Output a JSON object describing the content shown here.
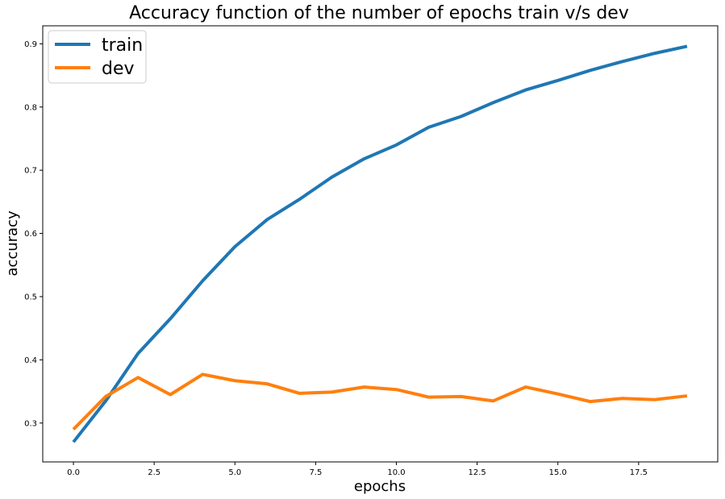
{
  "chart_data": {
    "type": "line",
    "title": "Accuracy function of the number of epochs train v/s dev",
    "xlabel": "epochs",
    "ylabel": "accuracy",
    "xlim": [
      -0.95,
      19.95
    ],
    "ylim": [
      0.2385,
      0.9285
    ],
    "xticks": [
      0.0,
      2.5,
      5.0,
      7.5,
      10.0,
      12.5,
      15.0,
      17.5
    ],
    "xtick_labels": [
      "0.0",
      "2.5",
      "5.0",
      "7.5",
      "10.0",
      "12.5",
      "15.0",
      "17.5"
    ],
    "yticks": [
      0.3,
      0.4,
      0.5,
      0.6,
      0.7,
      0.8,
      0.9
    ],
    "ytick_labels": [
      "0.3",
      "0.4",
      "0.5",
      "0.6",
      "0.7",
      "0.8",
      "0.9"
    ],
    "grid": false,
    "legend_position": "top-left",
    "x": [
      0,
      1,
      2,
      3,
      4,
      5,
      6,
      7,
      8,
      9,
      10,
      11,
      12,
      13,
      14,
      15,
      16,
      17,
      18,
      19
    ],
    "series": [
      {
        "name": "train",
        "color": "#1f77b4",
        "values": [
          0.27,
          0.335,
          0.41,
          0.465,
          0.525,
          0.579,
          0.622,
          0.654,
          0.689,
          0.718,
          0.74,
          0.768,
          0.785,
          0.807,
          0.827,
          0.842,
          0.858,
          0.872,
          0.885,
          0.896
        ]
      },
      {
        "name": "dev",
        "color": "#ff7f0e",
        "values": [
          0.29,
          0.342,
          0.372,
          0.345,
          0.377,
          0.367,
          0.362,
          0.347,
          0.349,
          0.357,
          0.353,
          0.341,
          0.342,
          0.335,
          0.357,
          0.346,
          0.334,
          0.339,
          0.337,
          0.343
        ]
      }
    ]
  }
}
